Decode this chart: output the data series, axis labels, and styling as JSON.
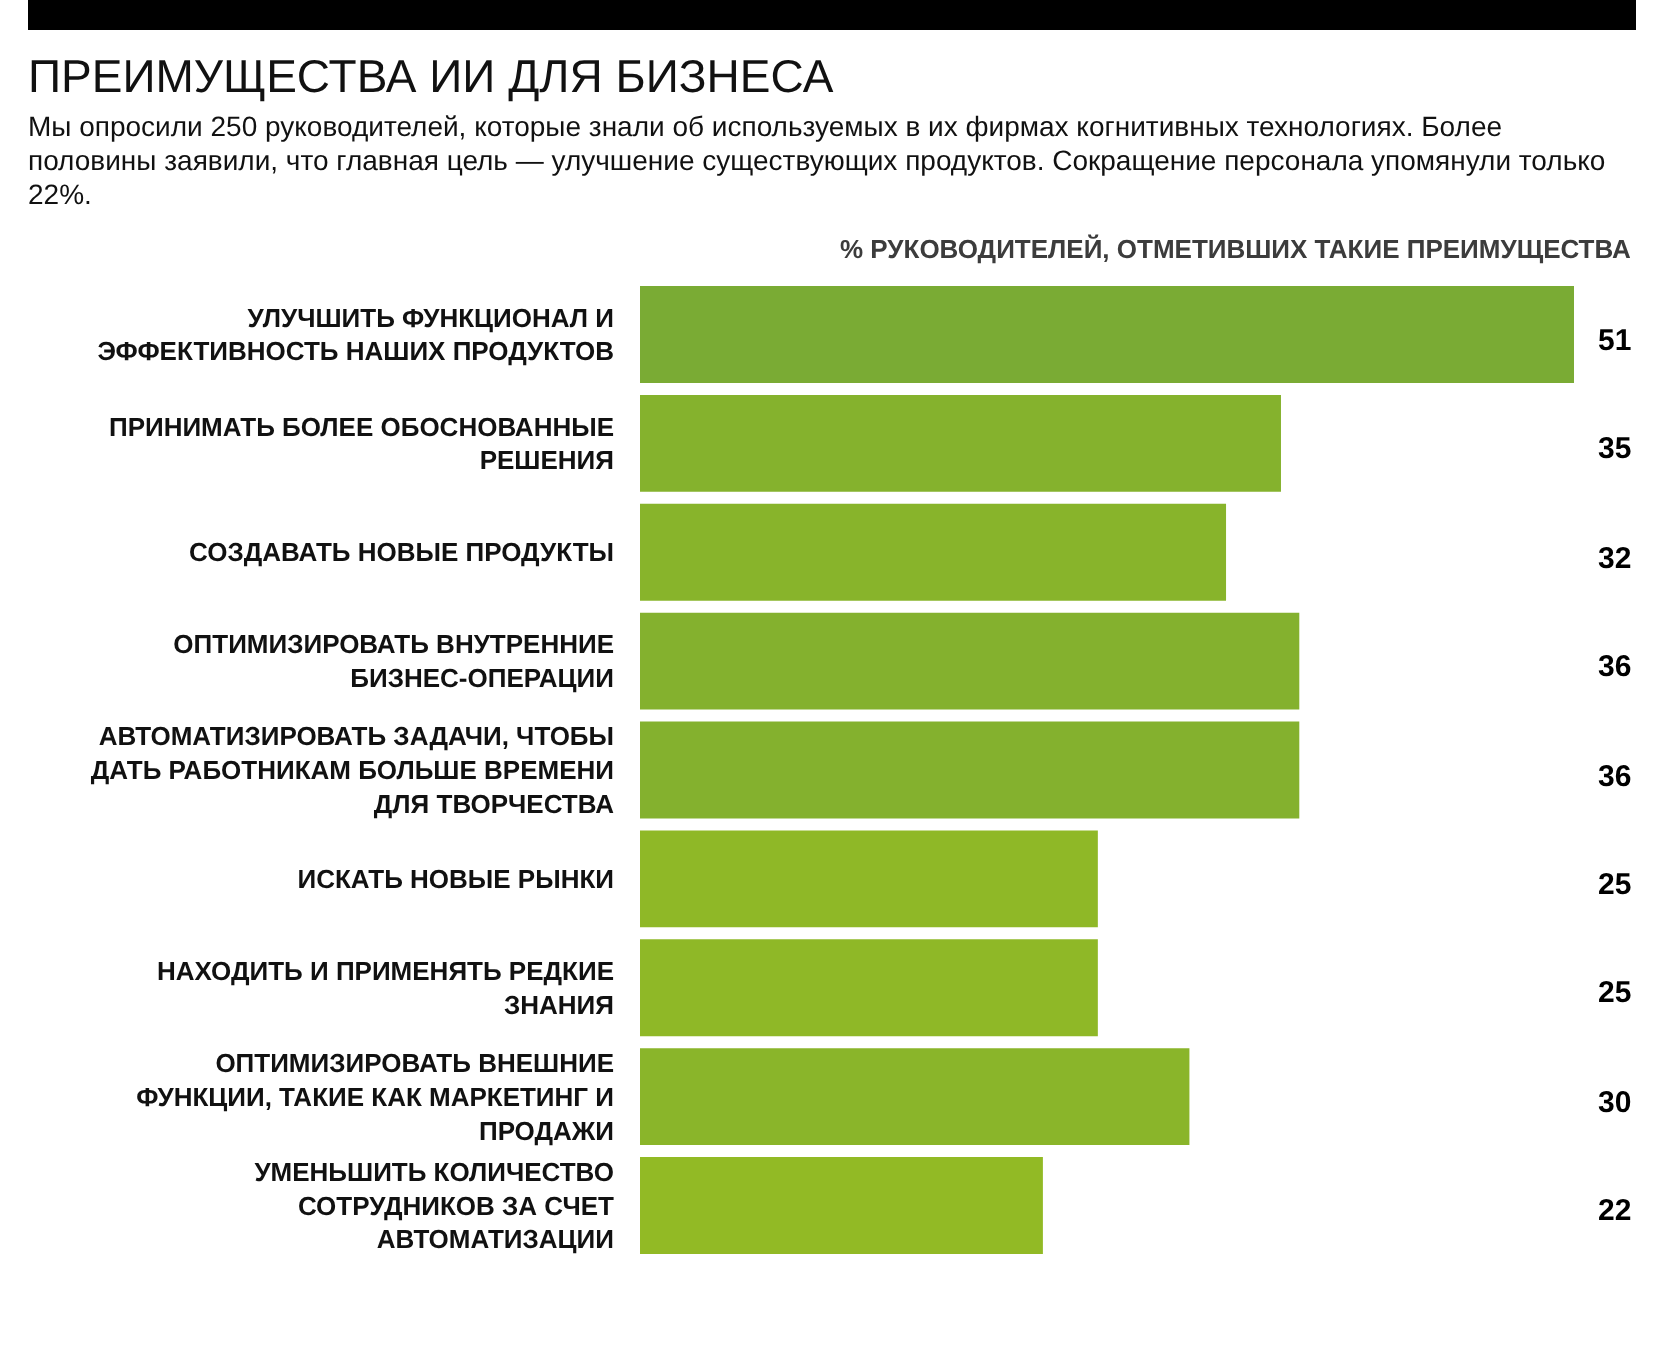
{
  "chart_data": {
    "type": "bar",
    "orientation": "horizontal",
    "title": "ПРЕИМУЩЕСТВА ИИ ДЛЯ БИЗНЕСА",
    "subtitle": "Мы опросили 250 руководителей, которые знали об используемых в их фирмах когнитивных технологиях. Более половины заявили, что главная цель — улучшение существующих продуктов. Сокращение персонала упомянули только 22%.",
    "xlabel": "% РУКОВОДИТЕЛЕЙ, ОТМЕТИВШИХ ТАКИЕ ПРЕИМУЩЕСТВА",
    "categories": [
      "УЛУЧШИТЬ ФУНКЦИОНАЛ И ЭФФЕКТИВНОСТЬ НАШИХ ПРОДУКТОВ",
      "ПРИНИМАТЬ БОЛЕЕ ОБОСНОВАННЫЕ РЕШЕНИЯ",
      "СОЗДАВАТЬ НОВЫЕ ПРОДУКТЫ",
      "ОПТИМИЗИРОВАТЬ ВНУТРЕННИЕ БИЗНЕС-ОПЕРАЦИИ",
      "АВТОМАТИЗИРОВАТЬ ЗАДАЧИ, ЧТОБЫ ДАТЬ РАБОТНИКАМ БОЛЬШЕ ВРЕМЕНИ ДЛЯ ТВОРЧЕСТВА",
      "ИСКАТЬ НОВЫЕ РЫНКИ",
      "НАХОДИТЬ И ПРИМЕНЯТЬ РЕДКИЕ ЗНАНИЯ",
      "ОПТИМИЗИРОВАТЬ ВНЕШНИЕ ФУНКЦИИ, ТАКИЕ КАК МАРКЕТИНГ И ПРОДАЖИ",
      "УМЕНЬШИТЬ КОЛИЧЕСТВО СОТРУДНИКОВ ЗА СЧЕТ АВТОМАТИЗАЦИИ"
    ],
    "values": [
      51,
      35,
      32,
      36,
      36,
      25,
      25,
      30,
      22
    ],
    "colors": [
      "#7aab34",
      "#85b22d",
      "#88b42b",
      "#84b12e",
      "#84b12e",
      "#8fb827",
      "#8fb827",
      "#8ab52a",
      "#92ba25"
    ],
    "data_labels": true
  }
}
